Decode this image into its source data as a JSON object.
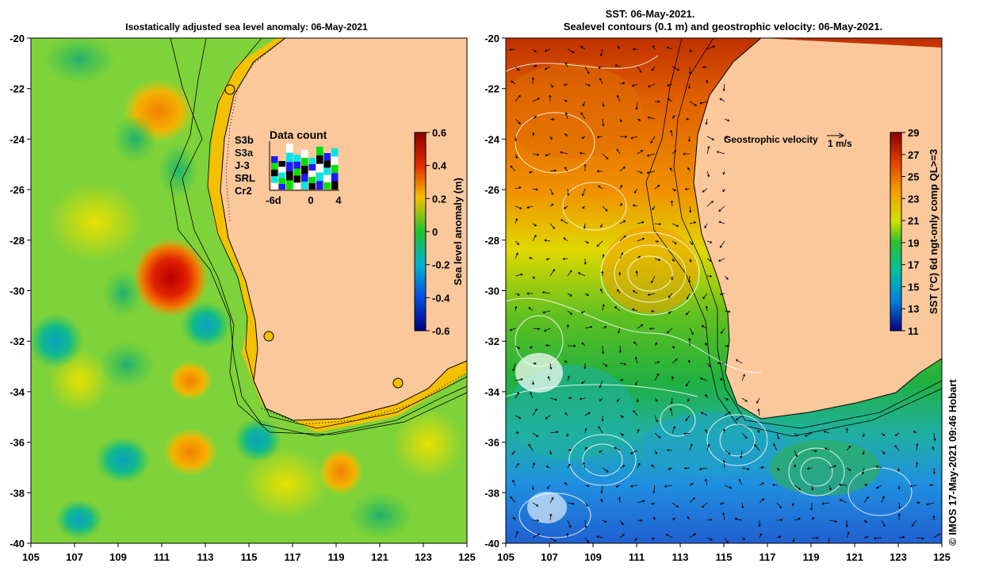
{
  "left_panel": {
    "title": "Isostatically adjusted sea level anomaly: 06-May-2021",
    "colorbar_label": "Sea level anomaly (m)",
    "colorbar_ticks": [
      "0.6",
      "0.4",
      "0.2",
      "0",
      "-0.2",
      "-0.4",
      "-0.6"
    ],
    "lat_labels": [
      "-20",
      "-22",
      "-24",
      "-26",
      "-28",
      "-30",
      "-32",
      "-34",
      "-36",
      "-38",
      "-40"
    ],
    "lon_labels": [
      "105",
      "107",
      "109",
      "111",
      "113",
      "115",
      "117",
      "119",
      "121",
      "123",
      "125"
    ],
    "data_count": {
      "title": "Data count",
      "x_labels": [
        "-6d",
        "0",
        "4"
      ],
      "satellites": [
        {
          "name": "S3b",
          "color": "#1a1aff"
        },
        {
          "name": "S3a",
          "color": "#ffffff"
        },
        {
          "name": "J-3",
          "color": "#000000"
        },
        {
          "name": "SRL",
          "color": "#00e5e5"
        },
        {
          "name": "Cr2",
          "color": "#00e000"
        }
      ]
    }
  },
  "right_panel": {
    "title_line1": "SST: 06-May-2021.",
    "title_line2": "Sealevel contours (0.1 m) and geostrophic velocity: 06-May-2021.",
    "velocity_label": "Geostrophic velocity",
    "velocity_scale": "1 m/s",
    "colorbar_label": "SST (°C) 6d ngt-only comp QL>=3",
    "colorbar_ticks": [
      "29",
      "27",
      "25",
      "23",
      "21",
      "19",
      "17",
      "15",
      "13",
      "11"
    ],
    "lat_labels": [
      "-20",
      "-22",
      "-24",
      "-26",
      "-28",
      "-30",
      "-32",
      "-34",
      "-36",
      "-38",
      "-40"
    ],
    "lon_labels": [
      "105",
      "107",
      "109",
      "111",
      "113",
      "115",
      "117",
      "119",
      "121",
      "123",
      "125"
    ]
  },
  "credit": "© IMOS 17-May-2021 09:46 Hobart",
  "colors": {
    "land": "#fbc89c",
    "coast_band": "#f5c000"
  }
}
